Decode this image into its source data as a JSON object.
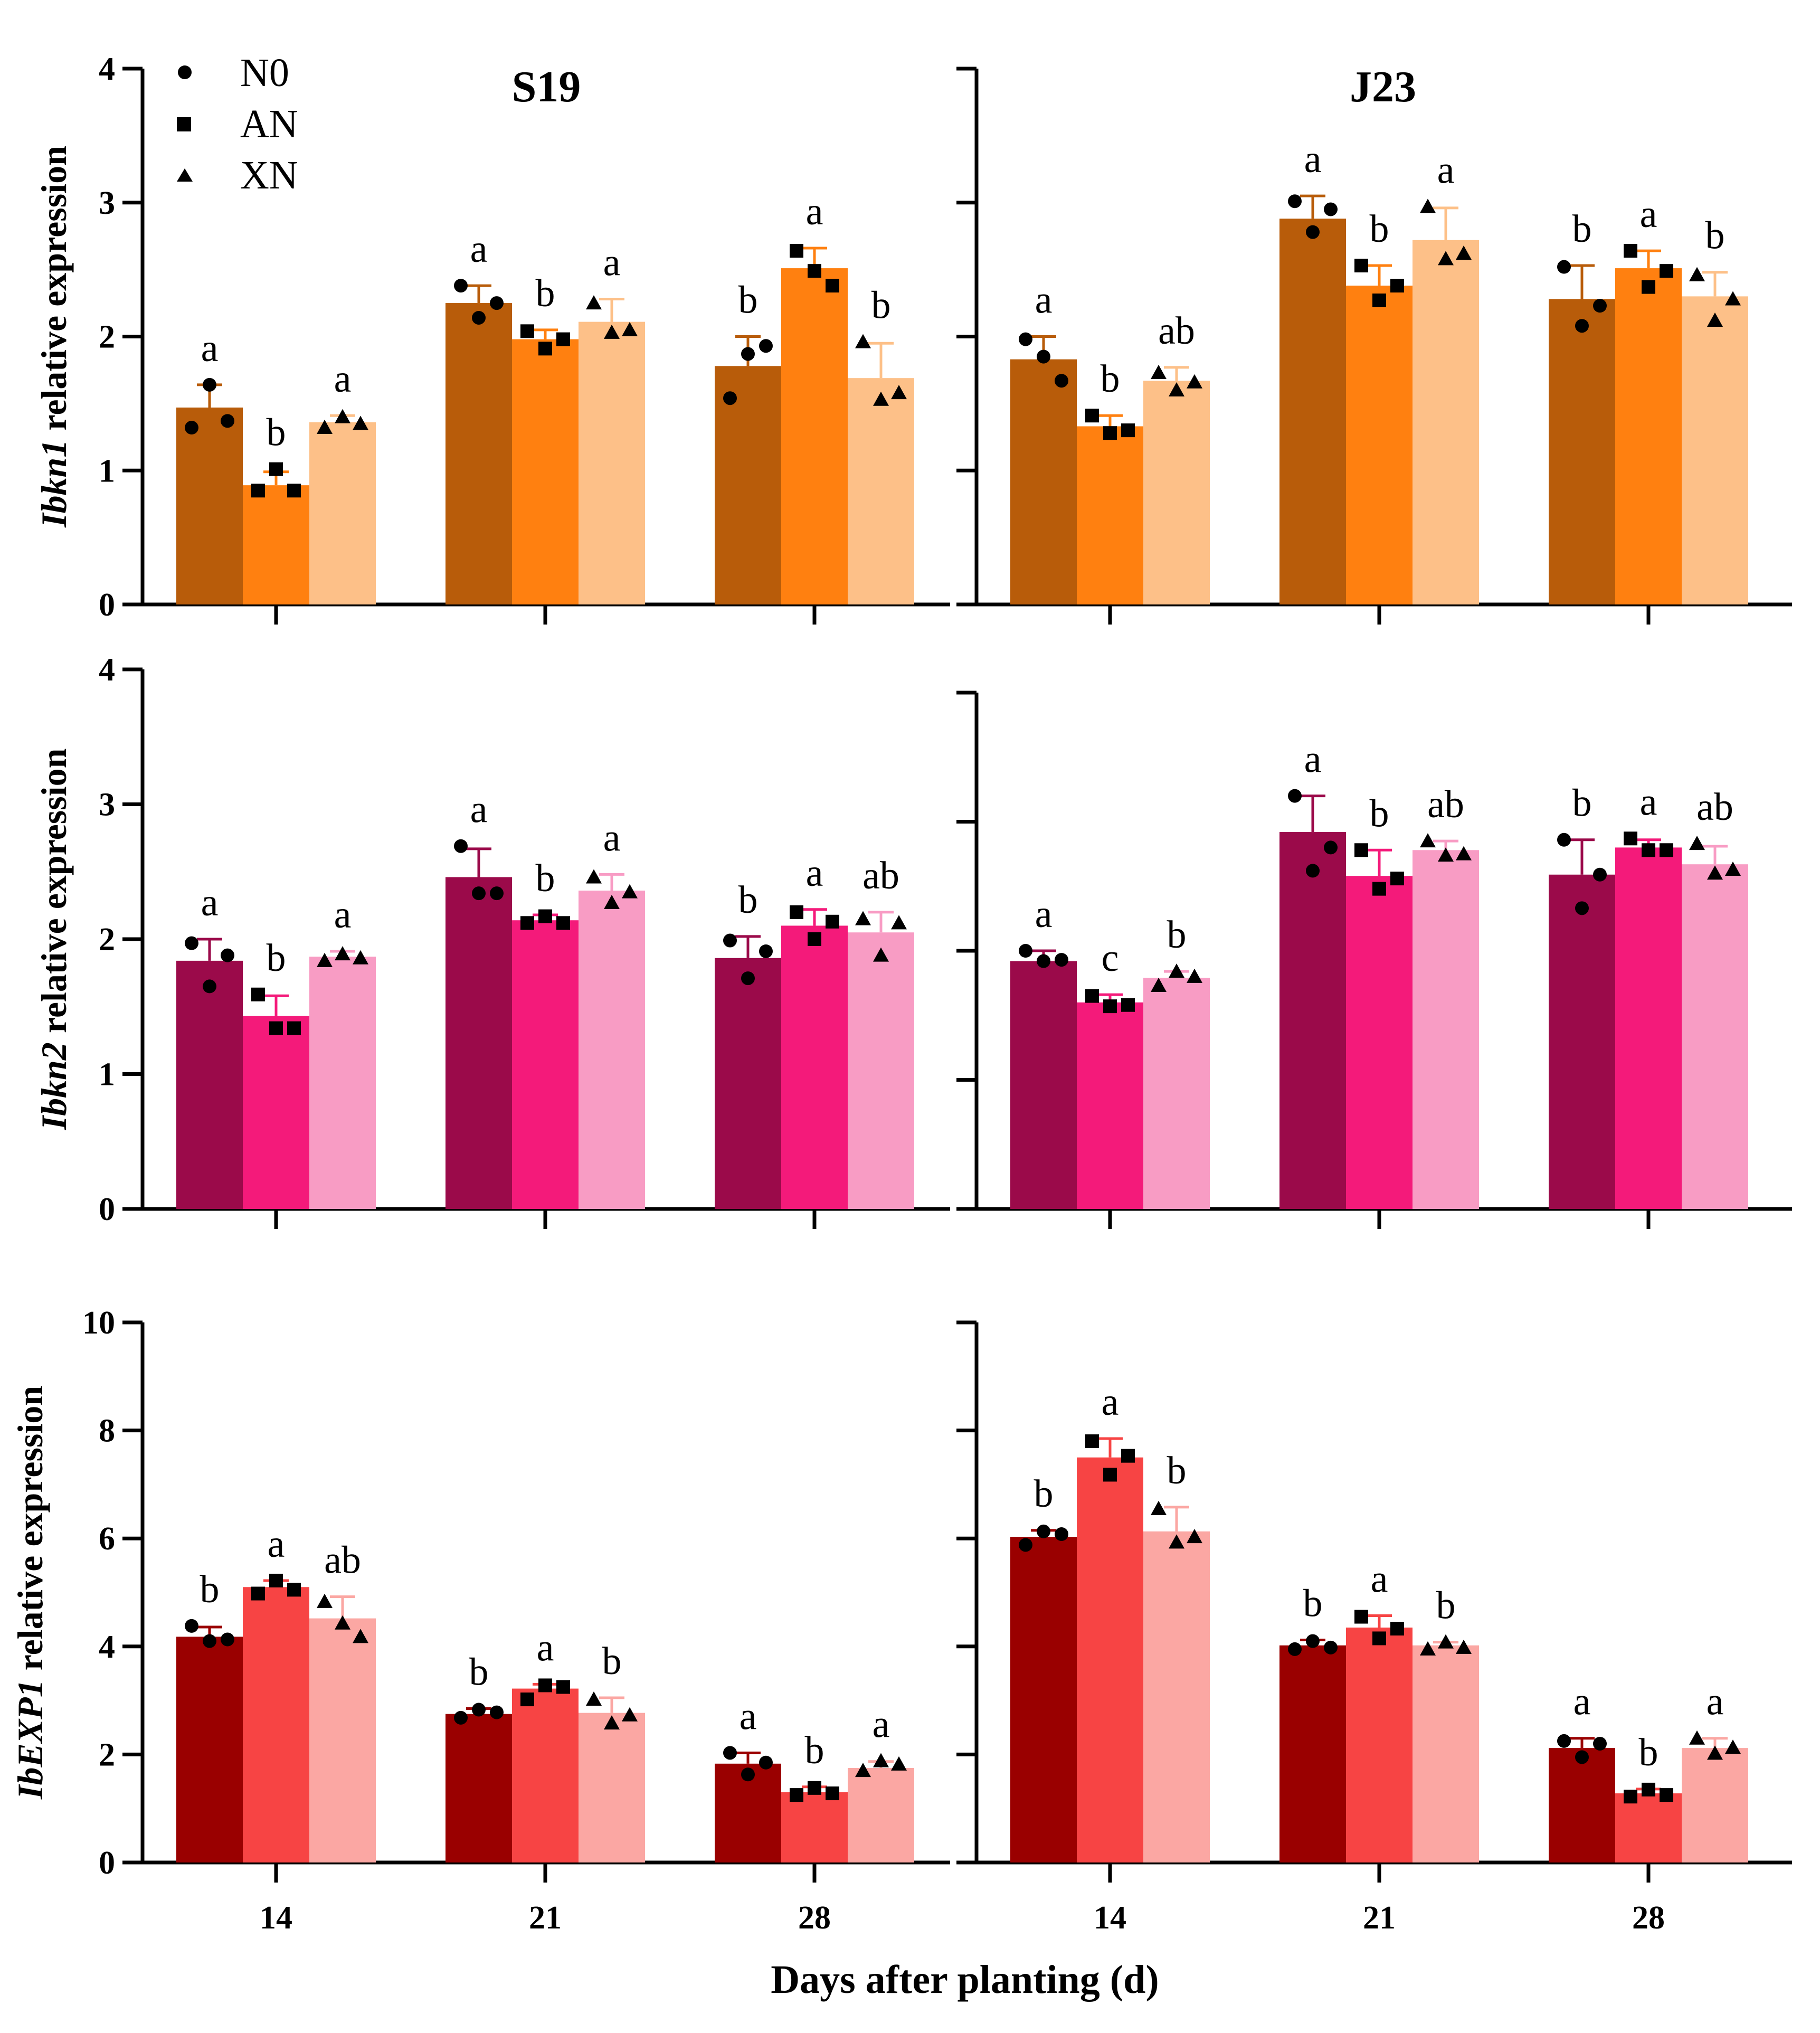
{
  "figure": {
    "xlabel": "Days after planting (d)",
    "legend": [
      {
        "label": "N0",
        "marker": "circle"
      },
      {
        "label": "AN",
        "marker": "square"
      },
      {
        "label": "XN",
        "marker": "triangle"
      }
    ]
  },
  "chart_data": [
    {
      "type": "bar",
      "gene": "Ibkn1",
      "ylabel_gene": "Ibkn1",
      "ylabel_rest": " relative expression",
      "title": "S19",
      "categories": [
        "14",
        "21",
        "28"
      ],
      "ylim": [
        0,
        4
      ],
      "yticks": [
        0,
        1,
        2,
        3,
        4
      ],
      "colors": [
        "#b85c0a",
        "#ff8010",
        "#fdc088"
      ],
      "series": [
        {
          "name": "N0",
          "values": [
            1.47,
            2.25,
            1.78
          ],
          "errors": [
            0.17,
            0.13,
            0.22
          ],
          "points": [
            [
              1.32,
              1.64,
              1.37
            ],
            [
              2.38,
              2.14,
              2.25
            ],
            [
              1.54,
              1.87,
              1.93
            ]
          ],
          "letters": [
            "a",
            "a",
            "b"
          ]
        },
        {
          "name": "AN",
          "values": [
            0.89,
            1.98,
            2.51
          ],
          "errors": [
            0.1,
            0.07,
            0.15
          ],
          "points": [
            [
              0.85,
              1.01,
              0.85
            ],
            [
              2.04,
              1.91,
              1.98
            ],
            [
              2.64,
              2.49,
              2.38
            ]
          ],
          "letters": [
            "b",
            "b",
            "a"
          ]
        },
        {
          "name": "XN",
          "values": [
            1.36,
            2.11,
            1.69
          ],
          "errors": [
            0.05,
            0.17,
            0.26
          ],
          "points": [
            [
              1.32,
              1.4,
              1.35
            ],
            [
              2.25,
              2.03,
              2.05
            ],
            [
              1.96,
              1.53,
              1.58
            ]
          ],
          "letters": [
            "a",
            "a",
            "b"
          ]
        }
      ]
    },
    {
      "type": "bar",
      "gene": "Ibkn1",
      "ylabel_gene": "",
      "ylabel_rest": "",
      "title": "J23",
      "categories": [
        "14",
        "21",
        "28"
      ],
      "ylim": [
        0,
        4
      ],
      "yticks": [
        0,
        1,
        2,
        3,
        4
      ],
      "colors": [
        "#b85c0a",
        "#ff8010",
        "#fdc088"
      ],
      "series": [
        {
          "name": "N0",
          "values": [
            1.83,
            2.88,
            2.28
          ],
          "errors": [
            0.17,
            0.17,
            0.25
          ],
          "points": [
            [
              1.98,
              1.85,
              1.67
            ],
            [
              3.01,
              2.78,
              2.95
            ],
            [
              2.52,
              2.08,
              2.23
            ]
          ],
          "letters": [
            "a",
            "a",
            "b"
          ]
        },
        {
          "name": "AN",
          "values": [
            1.33,
            2.38,
            2.51
          ],
          "errors": [
            0.08,
            0.15,
            0.13
          ],
          "points": [
            [
              1.41,
              1.28,
              1.3
            ],
            [
              2.53,
              2.27,
              2.38
            ],
            [
              2.64,
              2.37,
              2.49
            ]
          ],
          "letters": [
            "b",
            "b",
            "a"
          ]
        },
        {
          "name": "XN",
          "values": [
            1.67,
            2.72,
            2.3
          ],
          "errors": [
            0.1,
            0.24,
            0.18
          ],
          "points": [
            [
              1.73,
              1.6,
              1.66
            ],
            [
              2.97,
              2.58,
              2.62
            ],
            [
              2.46,
              2.12,
              2.28
            ]
          ],
          "letters": [
            "ab",
            "a",
            "b"
          ]
        }
      ]
    },
    {
      "type": "bar",
      "gene": "Ibkn2",
      "ylabel_gene": "Ibkn2",
      "ylabel_rest": " relative expression",
      "title": "",
      "categories": [
        "14",
        "21",
        "28"
      ],
      "ylim": [
        0,
        4
      ],
      "yticks": [
        0,
        1,
        2,
        3,
        4
      ],
      "colors": [
        "#9b0a4a",
        "#f41a7a",
        "#f89cc4"
      ],
      "series": [
        {
          "name": "N0",
          "values": [
            1.84,
            2.46,
            1.86
          ],
          "errors": [
            0.16,
            0.21,
            0.16
          ],
          "points": [
            [
              1.97,
              1.65,
              1.88
            ],
            [
              2.69,
              2.34,
              2.34
            ],
            [
              1.99,
              1.71,
              1.91
            ]
          ],
          "letters": [
            "a",
            "a",
            "b"
          ]
        },
        {
          "name": "AN",
          "values": [
            1.43,
            2.14,
            2.1
          ],
          "errors": [
            0.15,
            0.04,
            0.12
          ],
          "points": [
            [
              1.59,
              1.34,
              1.34
            ],
            [
              2.12,
              2.17,
              2.12
            ],
            [
              2.2,
              2.0,
              2.13
            ]
          ],
          "letters": [
            "b",
            "b",
            "a"
          ]
        },
        {
          "name": "XN",
          "values": [
            1.87,
            2.36,
            2.05
          ],
          "errors": [
            0.04,
            0.12,
            0.15
          ],
          "points": [
            [
              1.84,
              1.89,
              1.86
            ],
            [
              2.46,
              2.27,
              2.35
            ],
            [
              2.15,
              1.88,
              2.12
            ]
          ],
          "letters": [
            "a",
            "a",
            "ab"
          ]
        }
      ]
    },
    {
      "type": "bar",
      "gene": "Ibkn2",
      "ylabel_gene": "",
      "ylabel_rest": "",
      "title": "",
      "categories": [
        "14",
        "21",
        "28"
      ],
      "ylim": [
        0,
        4
      ],
      "yticks": [
        0,
        1,
        2,
        3,
        4
      ],
      "colors": [
        "#9b0a4a",
        "#f41a7a",
        "#f89cc4"
      ],
      "series": [
        {
          "name": "N0",
          "values": [
            1.92,
            2.92,
            2.59
          ],
          "errors": [
            0.08,
            0.28,
            0.27
          ],
          "points": [
            [
              2.0,
              1.92,
              1.93
            ],
            [
              3.2,
              2.62,
              2.8
            ],
            [
              2.86,
              2.33,
              2.59
            ]
          ],
          "letters": [
            "a",
            "a",
            "b"
          ]
        },
        {
          "name": "AN",
          "values": [
            1.6,
            2.58,
            2.8
          ],
          "errors": [
            0.06,
            0.2,
            0.06
          ],
          "points": [
            [
              1.65,
              1.57,
              1.58
            ],
            [
              2.78,
              2.48,
              2.56
            ],
            [
              2.87,
              2.78,
              2.78
            ]
          ],
          "letters": [
            "c",
            "b",
            "a"
          ]
        },
        {
          "name": "XN",
          "values": [
            1.79,
            2.78,
            2.67
          ],
          "errors": [
            0.05,
            0.07,
            0.14
          ],
          "points": [
            [
              1.73,
              1.84,
              1.8
            ],
            [
              2.85,
              2.74,
              2.75
            ],
            [
              2.83,
              2.6,
              2.63
            ]
          ],
          "letters": [
            "b",
            "ab",
            "ab"
          ]
        }
      ]
    },
    {
      "type": "bar",
      "gene": "IbEXP1",
      "ylabel_gene": "IbEXP1",
      "ylabel_rest": " relative expression",
      "title": "",
      "categories": [
        "14",
        "21",
        "28"
      ],
      "ylim": [
        0,
        10
      ],
      "yticks": [
        0,
        2,
        4,
        6,
        8,
        10
      ],
      "colors": [
        "#9a0000",
        "#f74444",
        "#fba7a3"
      ],
      "series": [
        {
          "name": "N0",
          "values": [
            4.18,
            2.75,
            1.83
          ],
          "errors": [
            0.18,
            0.1,
            0.2
          ],
          "points": [
            [
              4.38,
              4.1,
              4.13
            ],
            [
              2.68,
              2.83,
              2.78
            ],
            [
              2.03,
              1.63,
              1.85
            ]
          ],
          "letters": [
            "b",
            "b",
            "a"
          ]
        },
        {
          "name": "AN",
          "values": [
            5.1,
            3.22,
            1.3
          ],
          "errors": [
            0.12,
            0.08,
            0.1
          ],
          "points": [
            [
              4.98,
              5.22,
              5.05
            ],
            [
              3.02,
              3.28,
              3.25
            ],
            [
              1.25,
              1.38,
              1.28
            ]
          ],
          "letters": [
            "a",
            "a",
            "b"
          ]
        },
        {
          "name": "XN",
          "values": [
            4.52,
            2.77,
            1.75
          ],
          "errors": [
            0.4,
            0.28,
            0.12
          ],
          "points": [
            [
              4.83,
              4.43,
              4.18
            ],
            [
              3.02,
              2.58,
              2.73
            ],
            [
              1.7,
              1.88,
              1.82
            ]
          ],
          "letters": [
            "ab",
            "b",
            "a"
          ]
        }
      ]
    },
    {
      "type": "bar",
      "gene": "IbEXP1",
      "ylabel_gene": "",
      "ylabel_rest": "",
      "title": "",
      "categories": [
        "14",
        "21",
        "28"
      ],
      "ylim": [
        0,
        10
      ],
      "yticks": [
        0,
        2,
        4,
        6,
        8,
        10
      ],
      "colors": [
        "#9a0000",
        "#f74444",
        "#fba7a3"
      ],
      "series": [
        {
          "name": "N0",
          "values": [
            6.03,
            4.02,
            2.12
          ],
          "errors": [
            0.12,
            0.1,
            0.18
          ],
          "points": [
            [
              5.88,
              6.13,
              6.08
            ],
            [
              3.95,
              4.1,
              3.98
            ],
            [
              2.25,
              1.95,
              2.2
            ]
          ],
          "letters": [
            "b",
            "b",
            "a"
          ]
        },
        {
          "name": "AN",
          "values": [
            7.5,
            4.35,
            1.28
          ],
          "errors": [
            0.35,
            0.22,
            0.08
          ],
          "points": [
            [
              7.8,
              7.18,
              7.53
            ],
            [
              4.55,
              4.15,
              4.33
            ],
            [
              1.22,
              1.35,
              1.25
            ]
          ],
          "letters": [
            "a",
            "a",
            "b"
          ]
        },
        {
          "name": "XN",
          "values": [
            6.13,
            4.02,
            2.12
          ],
          "errors": [
            0.45,
            0.06,
            0.18
          ],
          "points": [
            [
              6.55,
              5.93,
              6.03
            ],
            [
              3.95,
              4.08,
              3.98
            ],
            [
              2.3,
              2.02,
              2.13
            ]
          ],
          "letters": [
            "b",
            "b",
            "a"
          ]
        }
      ]
    }
  ]
}
